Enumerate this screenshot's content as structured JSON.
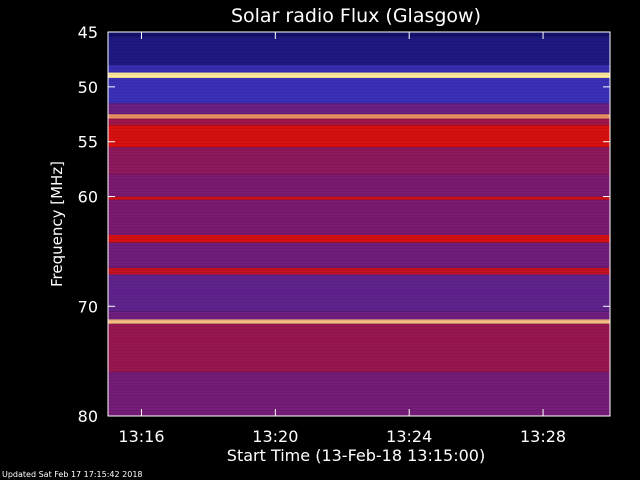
{
  "chart_data": {
    "type": "heatmap",
    "title": "Solar radio Flux (Glasgow)",
    "xlabel": "Start Time (13-Feb-18 13:15:00)",
    "ylabel": "Frequency [MHz]",
    "x_ticks": [
      "13:16",
      "13:20",
      "13:24",
      "13:28"
    ],
    "x_tick_minutes": [
      16,
      20,
      24,
      28
    ],
    "xlim_minutes": [
      15,
      30
    ],
    "y_ticks": [
      45,
      50,
      55,
      60,
      70,
      80
    ],
    "ylim": [
      45,
      80
    ],
    "colormap": "blue-red-yellow-white",
    "colors": {
      "background": "#000000",
      "low": "#0a0a5a",
      "mid_low": "#3a30b8",
      "mid": "#7a1a70",
      "high": "#d81010",
      "peak": "#ffe8a0"
    },
    "bands": [
      {
        "from": 45.0,
        "to": 45.4,
        "level": 0.05
      },
      {
        "from": 45.4,
        "to": 48.0,
        "level": 0.12
      },
      {
        "from": 48.0,
        "to": 48.7,
        "level": 0.28
      },
      {
        "from": 48.7,
        "to": 49.2,
        "level": 1.0
      },
      {
        "from": 49.2,
        "to": 51.5,
        "level": 0.3
      },
      {
        "from": 51.5,
        "to": 52.5,
        "level": 0.45
      },
      {
        "from": 52.5,
        "to": 52.9,
        "level": 0.9
      },
      {
        "from": 52.9,
        "to": 53.5,
        "level": 0.6
      },
      {
        "from": 53.5,
        "to": 55.5,
        "level": 0.75
      },
      {
        "from": 55.5,
        "to": 58.0,
        "level": 0.55
      },
      {
        "from": 58.0,
        "to": 60.0,
        "level": 0.5
      },
      {
        "from": 60.0,
        "to": 60.3,
        "level": 0.72
      },
      {
        "from": 60.3,
        "to": 63.5,
        "level": 0.5
      },
      {
        "from": 63.5,
        "to": 64.2,
        "level": 0.74
      },
      {
        "from": 64.2,
        "to": 66.5,
        "level": 0.47
      },
      {
        "from": 66.5,
        "to": 67.1,
        "level": 0.7
      },
      {
        "from": 67.1,
        "to": 70.5,
        "level": 0.42
      },
      {
        "from": 70.5,
        "to": 71.2,
        "level": 0.46
      },
      {
        "from": 71.2,
        "to": 71.6,
        "level": 0.95
      },
      {
        "from": 71.6,
        "to": 76.0,
        "level": 0.58
      },
      {
        "from": 76.0,
        "to": 80.0,
        "level": 0.48
      }
    ],
    "footer": "Updated Sat Feb 17 17:15:42 2018"
  }
}
